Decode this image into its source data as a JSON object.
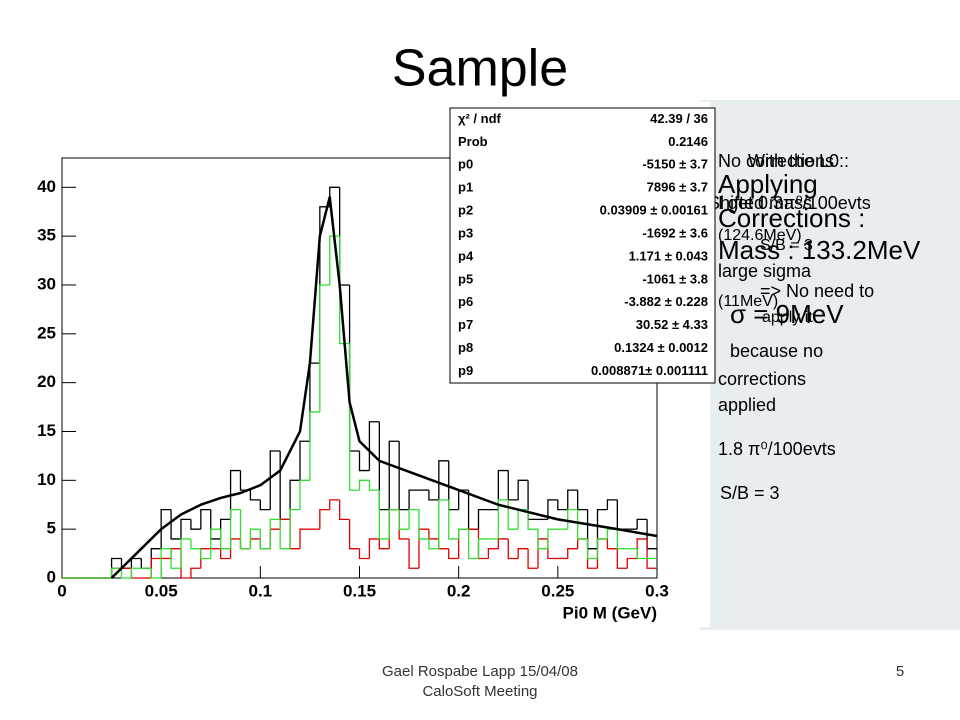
{
  "slide": {
    "title": "Sample",
    "notes": [
      "No corrections :",
      "With the L0 :",
      "Applying",
      "I get 0.3π⁰/100evts",
      "Corrections :",
      "Shifted mass",
      "(124.6MeV)",
      "S/B = 3",
      "Mass : 133.2MeV",
      "large sigma",
      "=> No need to",
      "(11MeV)",
      "apply it",
      "σ = 9MeV",
      "because no",
      "corrections",
      "applied",
      "1.8 π⁰/100evts",
      "S/B = 3"
    ],
    "footer": [
      "Gael Rospabe Lapp 15/04/08",
      "CaloSoft Meeting"
    ],
    "page_number": "5"
  },
  "chart_data": {
    "type": "histogram",
    "x_label": "Pi0 M (GeV)",
    "xlim": [
      0,
      0.3
    ],
    "ylim": [
      0,
      43
    ],
    "xticks": [
      0,
      0.05,
      0.1,
      0.15,
      0.2,
      0.25,
      0.3
    ],
    "yticks": [
      0,
      5,
      10,
      15,
      20,
      25,
      30,
      35,
      40
    ],
    "bins": [
      0,
      0.005,
      0.01,
      0.015,
      0.02,
      0.025,
      0.03,
      0.035,
      0.04,
      0.045,
      0.05,
      0.055,
      0.06,
      0.065,
      0.07,
      0.075,
      0.08,
      0.085,
      0.09,
      0.095,
      0.1,
      0.105,
      0.11,
      0.115,
      0.12,
      0.125,
      0.13,
      0.135,
      0.14,
      0.145,
      0.15,
      0.155,
      0.16,
      0.165,
      0.17,
      0.175,
      0.18,
      0.185,
      0.19,
      0.195,
      0.2,
      0.205,
      0.21,
      0.215,
      0.22,
      0.225,
      0.23,
      0.235,
      0.24,
      0.245,
      0.25,
      0.255,
      0.26,
      0.265,
      0.27,
      0.275,
      0.28,
      0.285,
      0.29,
      0.295,
      0.3
    ],
    "series": [
      {
        "color": "#000000",
        "values": [
          0,
          0,
          0,
          0,
          0,
          2,
          1,
          2,
          1,
          3,
          7,
          4,
          6,
          5,
          7,
          4,
          6,
          11,
          9,
          8,
          7,
          13,
          6,
          10,
          14,
          22,
          38,
          40,
          30,
          13,
          11,
          16,
          7,
          14,
          7,
          9,
          9,
          8,
          12,
          7,
          9,
          5,
          7,
          7,
          11,
          8,
          10,
          6,
          6,
          8,
          7,
          9,
          7,
          3,
          7,
          8,
          5,
          5,
          6,
          3
        ]
      },
      {
        "color": "#e00000",
        "values": [
          0,
          0,
          0,
          0,
          0,
          1,
          1,
          0,
          0,
          2,
          2,
          3,
          0,
          1,
          3,
          3,
          2,
          4,
          3,
          4,
          3,
          5,
          6,
          3,
          5,
          5,
          7,
          8,
          6,
          3,
          2,
          4,
          3,
          7,
          4,
          1,
          5,
          4,
          3,
          2,
          5,
          5,
          2,
          3,
          4,
          2,
          3,
          1,
          4,
          2,
          2,
          3,
          4,
          1,
          4,
          3,
          1,
          2,
          4,
          1
        ]
      },
      {
        "color": "#33dd33",
        "values": [
          0,
          0,
          0,
          0,
          0,
          1,
          0,
          1,
          1,
          0,
          3,
          1,
          4,
          3,
          2,
          5,
          3,
          7,
          3,
          5,
          3,
          6,
          3,
          7,
          10,
          17,
          30,
          35,
          24,
          9,
          10,
          9,
          4,
          7,
          5,
          7,
          4,
          3,
          8,
          4,
          5,
          2,
          4,
          4,
          8,
          5,
          7,
          5,
          3,
          5,
          5,
          7,
          4,
          2,
          4,
          5,
          3,
          3,
          2,
          2
        ]
      }
    ],
    "fit": {
      "color": "#000000",
      "x": [
        0.025,
        0.04,
        0.05,
        0.06,
        0.07,
        0.08,
        0.09,
        0.1,
        0.11,
        0.12,
        0.125,
        0.13,
        0.135,
        0.14,
        0.145,
        0.15,
        0.16,
        0.18,
        0.2,
        0.22,
        0.25,
        0.28,
        0.3
      ],
      "values": [
        0,
        3,
        5,
        6.5,
        7.5,
        8.2,
        8.7,
        9.5,
        11,
        15,
        22,
        35,
        39,
        30,
        18,
        14,
        12,
        10.5,
        9,
        7.5,
        6,
        5,
        4.3
      ]
    },
    "stats": [
      {
        "label": "χ² / ndf",
        "value": "42.39 / 36"
      },
      {
        "label": "Prob",
        "value": "0.2146"
      },
      {
        "label": "p0",
        "value": "-5150 ± 3.7"
      },
      {
        "label": "p1",
        "value": "7896 ± 3.7"
      },
      {
        "label": "p2",
        "value": "0.03909 ± 0.00161"
      },
      {
        "label": "p3",
        "value": "-1692 ± 3.6"
      },
      {
        "label": "p4",
        "value": "1.171 ± 0.043"
      },
      {
        "label": "p5",
        "value": "-1061 ± 3.8"
      },
      {
        "label": "p6",
        "value": "-3.882 ± 0.228"
      },
      {
        "label": "p7",
        "value": "30.52 ± 4.33"
      },
      {
        "label": "p8",
        "value": "0.1324 ± 0.0012"
      },
      {
        "label": "p9",
        "value": "0.008871± 0.001111"
      }
    ]
  }
}
